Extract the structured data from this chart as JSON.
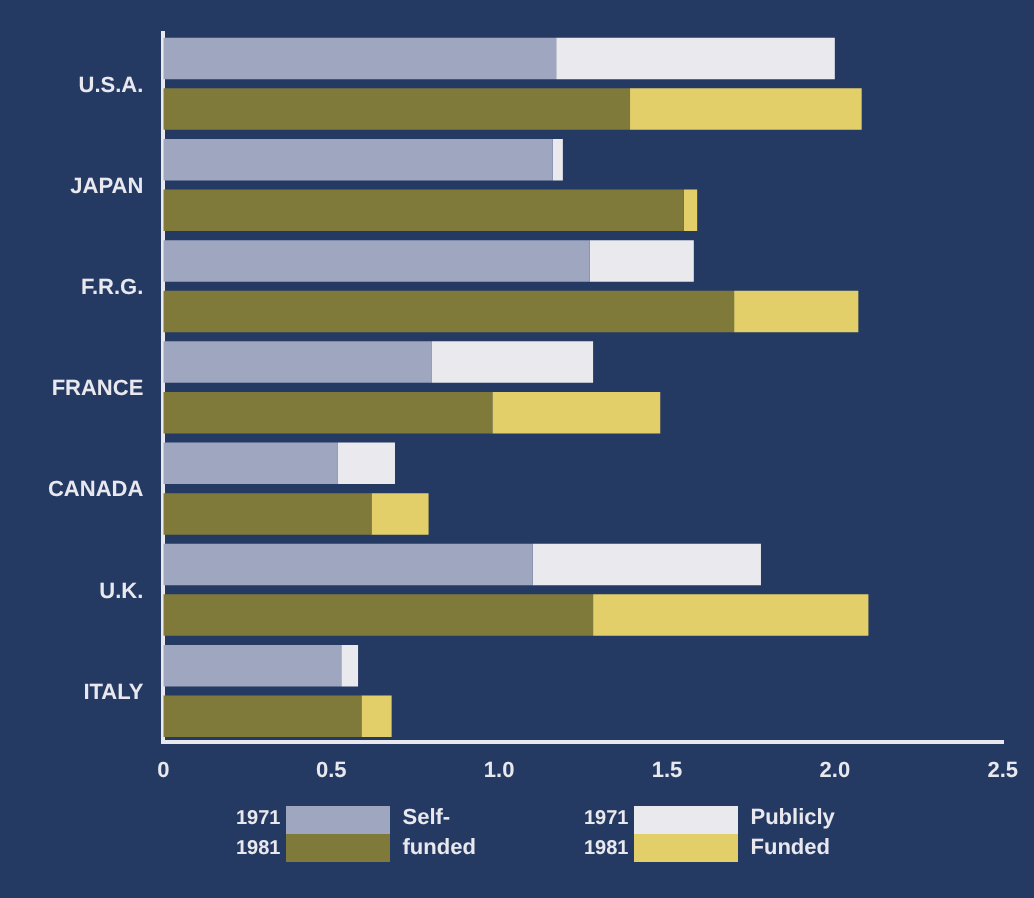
{
  "chart_data": {
    "type": "bar",
    "orientation": "horizontal",
    "stacked": true,
    "grid": false,
    "legend": "bottom",
    "categories": [
      "U.S.A.",
      null,
      "JAPAN",
      null,
      "F.R.G.",
      null,
      "FRANCE",
      null,
      "CANADA",
      null,
      "U.K.",
      null,
      "ITALY",
      null
    ],
    "series": [
      {
        "name": "Self-funded",
        "colors": [
          "#9ea6c0",
          "#7f7a3a",
          "#9ea6c0",
          "#7f7a3a",
          "#9ea6c0",
          "#7f7a3a",
          "#9ea6c0",
          "#7f7a3a",
          "#9ea6c0",
          "#7f7a3a",
          "#9ea6c0",
          "#7f7a3a",
          "#9ea6c0",
          "#7f7a3a"
        ],
        "values": [
          1.17,
          1.39,
          1.16,
          1.55,
          1.27,
          1.7,
          0.8,
          0.98,
          0.52,
          0.62,
          1.1,
          1.28,
          0.53,
          0.59
        ]
      },
      {
        "name": "Publicly Funded",
        "colors": [
          "#e9e9ee",
          "#e3cf6a",
          "#e9e9ee",
          "#e3cf6a",
          "#e9e9ee",
          "#e3cf6a",
          "#e9e9ee",
          "#e3cf6a",
          "#e9e9ee",
          "#e3cf6a",
          "#e9e9ee",
          "#e3cf6a",
          "#e9e9ee",
          "#e3cf6a"
        ],
        "values": [
          0.83,
          0.69,
          0.03,
          0.04,
          0.31,
          0.37,
          0.48,
          0.5,
          0.17,
          0.17,
          0.68,
          0.82,
          0.05,
          0.09
        ]
      }
    ],
    "xlim": [
      0,
      2.5
    ],
    "xticks": [
      0,
      0.5,
      {
        "value": 1,
        "label": "1.0"
      },
      1.5,
      {
        "value": 2,
        "label": "2.0"
      },
      2.5
    ],
    "annotations": [
      "1971",
      "1981",
      "1971",
      "1981"
    ]
  }
}
